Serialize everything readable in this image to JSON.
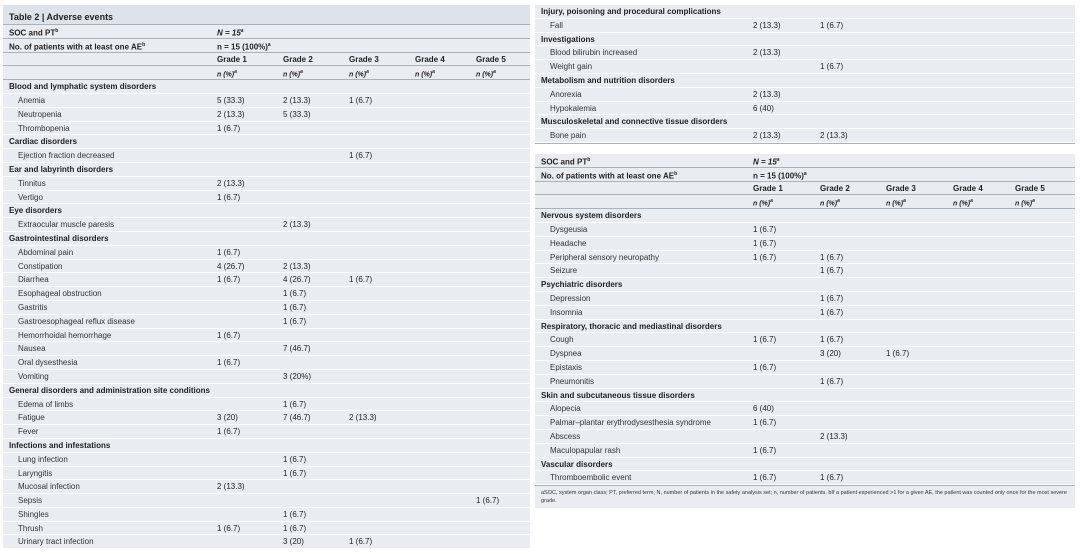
{
  "title": "Table 2 | Adverse events",
  "header": {
    "soc_label": "SOC and PT",
    "soc_sup": "b",
    "n_value": "N = 15",
    "n_sup": "a",
    "ae_label": "No. of patients with at least one AE",
    "ae_sup": "b",
    "ae_value": "n = 15 (100%)",
    "ae_value_sup": "a",
    "grades": [
      "Grade 1",
      "Grade 2",
      "Grade 3",
      "Grade 4",
      "Grade 5"
    ],
    "unit": "n (%)",
    "unit_sup": "a"
  },
  "left_rows": [
    {
      "type": "cat",
      "label": "Blood and lymphatic system disorders"
    },
    {
      "type": "item",
      "label": "Anemia",
      "g": [
        "5 (33.3)",
        "2 (13.3)",
        "1 (6.7)",
        "",
        ""
      ]
    },
    {
      "type": "item",
      "label": "Neutropenia",
      "g": [
        "2 (13.3)",
        "5 (33.3)",
        "",
        "",
        ""
      ]
    },
    {
      "type": "item",
      "label": "Thrombopenia",
      "g": [
        "1 (6.7)",
        "",
        "",
        "",
        ""
      ]
    },
    {
      "type": "cat",
      "label": "Cardiac disorders"
    },
    {
      "type": "item",
      "label": "Ejection fraction decreased",
      "g": [
        "",
        "",
        "1 (6.7)",
        "",
        ""
      ]
    },
    {
      "type": "cat",
      "label": "Ear and labyrinth disorders"
    },
    {
      "type": "item",
      "label": "Tinnitus",
      "g": [
        "2 (13.3)",
        "",
        "",
        "",
        ""
      ]
    },
    {
      "type": "item",
      "label": "Vertigo",
      "g": [
        "1 (6.7)",
        "",
        "",
        "",
        ""
      ]
    },
    {
      "type": "cat",
      "label": "Eye disorders"
    },
    {
      "type": "item",
      "label": "Extraocular muscle paresis",
      "g": [
        "",
        "2 (13.3)",
        "",
        "",
        ""
      ]
    },
    {
      "type": "cat",
      "label": "Gastrointestinal disorders"
    },
    {
      "type": "item",
      "label": "Abdominal pain",
      "g": [
        "1 (6.7)",
        "",
        "",
        "",
        ""
      ]
    },
    {
      "type": "item",
      "label": "Constipation",
      "g": [
        "4 (26.7)",
        "2 (13.3)",
        "",
        "",
        ""
      ]
    },
    {
      "type": "item",
      "label": "Diarrhea",
      "g": [
        "1 (6.7)",
        "4 (26.7)",
        "1 (6.7)",
        "",
        ""
      ]
    },
    {
      "type": "item",
      "label": "Esophageal obstruction",
      "g": [
        "",
        "1 (6.7)",
        "",
        "",
        ""
      ]
    },
    {
      "type": "item",
      "label": "Gastritis",
      "g": [
        "",
        "1 (6.7)",
        "",
        "",
        ""
      ]
    },
    {
      "type": "item",
      "label": "Gastroesophageal reflux disease",
      "g": [
        "",
        "1 (6.7)",
        "",
        "",
        ""
      ]
    },
    {
      "type": "item",
      "label": "Hemorrhoidal hemorrhage",
      "g": [
        "1 (6.7)",
        "",
        "",
        "",
        ""
      ]
    },
    {
      "type": "item",
      "label": "Nausea",
      "g": [
        "",
        "7 (46.7)",
        "",
        "",
        ""
      ]
    },
    {
      "type": "item",
      "label": "Oral dysesthesia",
      "g": [
        "1 (6.7)",
        "",
        "",
        "",
        ""
      ]
    },
    {
      "type": "item",
      "label": "Vomiting",
      "g": [
        "",
        "3 (20%)",
        "",
        "",
        ""
      ]
    },
    {
      "type": "cat",
      "label": "General disorders and administration site conditions"
    },
    {
      "type": "item",
      "label": "Edema of limbs",
      "g": [
        "",
        "1 (6.7)",
        "",
        "",
        ""
      ]
    },
    {
      "type": "item",
      "label": "Fatigue",
      "g": [
        "3 (20)",
        "7 (46.7)",
        "2 (13.3)",
        "",
        ""
      ]
    },
    {
      "type": "item",
      "label": "Fever",
      "g": [
        "1 (6.7)",
        "",
        "",
        "",
        ""
      ]
    },
    {
      "type": "cat",
      "label": "Infections and infestations"
    },
    {
      "type": "item",
      "label": "Lung infection",
      "g": [
        "",
        "1 (6.7)",
        "",
        "",
        ""
      ]
    },
    {
      "type": "item",
      "label": "Laryngitis",
      "g": [
        "",
        "1 (6.7)",
        "",
        "",
        ""
      ]
    },
    {
      "type": "item",
      "label": "Mucosal infection",
      "g": [
        "2 (13.3)",
        "",
        "",
        "",
        ""
      ]
    },
    {
      "type": "item",
      "label": "Sepsis",
      "g": [
        "",
        "",
        "",
        "",
        "1 (6.7)"
      ]
    },
    {
      "type": "item",
      "label": "Shingles",
      "g": [
        "",
        "1 (6.7)",
        "",
        "",
        ""
      ]
    },
    {
      "type": "item",
      "label": "Thrush",
      "g": [
        "1 (6.7)",
        "1 (6.7)",
        "",
        "",
        ""
      ]
    },
    {
      "type": "item",
      "label": "Urinary tract infection",
      "g": [
        "",
        "3 (20)",
        "1 (6.7)",
        "",
        ""
      ]
    }
  ],
  "right_top_rows": [
    {
      "type": "cat",
      "label": "Injury, poisoning and procedural complications"
    },
    {
      "type": "item",
      "label": "Fall",
      "g": [
        "2 (13.3)",
        "1 (6.7)",
        "",
        "",
        ""
      ]
    },
    {
      "type": "cat",
      "label": "Investigations"
    },
    {
      "type": "item",
      "label": "Blood bilirubin increased",
      "g": [
        "2 (13.3)",
        "",
        "",
        "",
        ""
      ]
    },
    {
      "type": "item",
      "label": "Weight gain",
      "g": [
        "",
        "1 (6.7)",
        "",
        "",
        ""
      ]
    },
    {
      "type": "cat",
      "label": "Metabolism and nutrition disorders"
    },
    {
      "type": "item",
      "label": "Anorexia",
      "g": [
        "2 (13.3)",
        "",
        "",
        "",
        ""
      ]
    },
    {
      "type": "item",
      "label": "Hypokalemia",
      "g": [
        "6 (40)",
        "",
        "",
        "",
        ""
      ]
    },
    {
      "type": "cat",
      "label": "Musculoskeletal and connective tissue disorders"
    },
    {
      "type": "item",
      "label": "Bone pain",
      "g": [
        "2 (13.3)",
        "2 (13.3)",
        "",
        "",
        ""
      ]
    }
  ],
  "right_rows": [
    {
      "type": "cat",
      "label": "Nervous system disorders"
    },
    {
      "type": "item",
      "label": "Dysgeusia",
      "g": [
        "1 (6.7)",
        "",
        "",
        "",
        ""
      ]
    },
    {
      "type": "item",
      "label": "Headache",
      "g": [
        "1 (6.7)",
        "",
        "",
        "",
        ""
      ]
    },
    {
      "type": "item",
      "label": "Peripheral sensory neuropathy",
      "g": [
        "1 (6.7)",
        "1 (6.7)",
        "",
        "",
        ""
      ]
    },
    {
      "type": "item",
      "label": "Seizure",
      "g": [
        "",
        "1 (6.7)",
        "",
        "",
        ""
      ]
    },
    {
      "type": "cat",
      "label": "Psychiatric disorders"
    },
    {
      "type": "item",
      "label": "Depression",
      "g": [
        "",
        "1 (6.7)",
        "",
        "",
        ""
      ]
    },
    {
      "type": "item",
      "label": "Insomnia",
      "g": [
        "",
        "1 (6.7)",
        "",
        "",
        ""
      ]
    },
    {
      "type": "cat",
      "label": "Respiratory, thoracic and mediastinal disorders"
    },
    {
      "type": "item",
      "label": "Cough",
      "g": [
        "1 (6.7)",
        "1 (6.7)",
        "",
        "",
        ""
      ]
    },
    {
      "type": "item",
      "label": "Dyspnea",
      "g": [
        "",
        "3 (20)",
        "1 (6.7)",
        "",
        ""
      ]
    },
    {
      "type": "item",
      "label": "Epistaxis",
      "g": [
        "1 (6.7)",
        "",
        "",
        "",
        ""
      ]
    },
    {
      "type": "item",
      "label": "Pneumonitis",
      "g": [
        "",
        "1 (6.7)",
        "",
        "",
        ""
      ]
    },
    {
      "type": "cat",
      "label": "Skin and subcutaneous tissue disorders"
    },
    {
      "type": "item",
      "label": "Alopecia",
      "g": [
        "6 (40)",
        "",
        "",
        "",
        ""
      ]
    },
    {
      "type": "item",
      "label": "Palmar–plantar erythrodysesthesia syndrome",
      "g": [
        "1 (6.7)",
        "",
        "",
        "",
        ""
      ]
    },
    {
      "type": "item",
      "label": "Abscess",
      "g": [
        "",
        "2 (13.3)",
        "",
        "",
        ""
      ]
    },
    {
      "type": "item",
      "label": "Maculopapular rash",
      "g": [
        "1 (6.7)",
        "",
        "",
        "",
        ""
      ]
    },
    {
      "type": "cat",
      "label": "Vascular disorders"
    },
    {
      "type": "item",
      "label": "Thromboembolic event",
      "g": [
        "1 (6.7)",
        "1 (6.7)",
        "",
        "",
        ""
      ]
    }
  ],
  "footnote": "aSOC, system organ class; PT, preferred term; N, number of patients in the safety analysis set; n, number of patients. bIf a patient experienced >1 for a given AE, the patient was counted only once for the most severe grade."
}
